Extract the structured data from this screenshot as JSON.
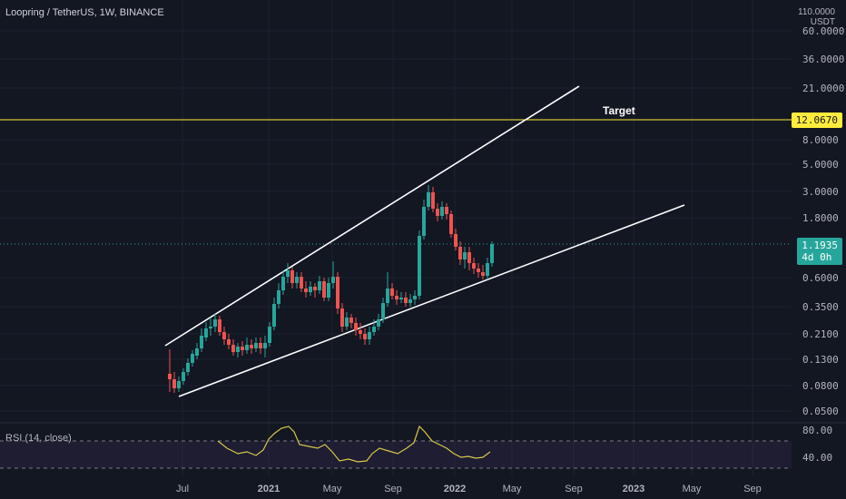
{
  "header": {
    "symbol_title": "Loopring / TetherUS, 1W, BINANCE"
  },
  "price_axis": {
    "currency": "USDT",
    "top_value": "110.0000",
    "labels": [
      "60.0000",
      "36.0000",
      "21.0000",
      "8.0000",
      "5.0000",
      "3.0000",
      "1.8000",
      "0.6000",
      "0.3500",
      "0.2100",
      "0.1300",
      "0.0800",
      "0.0500"
    ]
  },
  "target": {
    "label": "Target",
    "price_tag": "12.0670",
    "color": "#ffeb3b"
  },
  "last_price": {
    "value": "1.1935",
    "countdown": "4d 0h",
    "color": "#26a69a"
  },
  "rsi": {
    "label": "RSI (14, close)",
    "axis_labels": [
      "80.00",
      "40.00"
    ],
    "line_color": "#d7c749"
  },
  "time_axis": {
    "labels": [
      "Jul",
      "2021",
      "May",
      "Sep",
      "2022",
      "May",
      "Sep",
      "2023",
      "May",
      "Sep"
    ]
  },
  "colors": {
    "background": "#131722",
    "up": "#26a69a",
    "down": "#ef5350",
    "trendline": "#ffffff",
    "grid": "#1e222d"
  }
}
